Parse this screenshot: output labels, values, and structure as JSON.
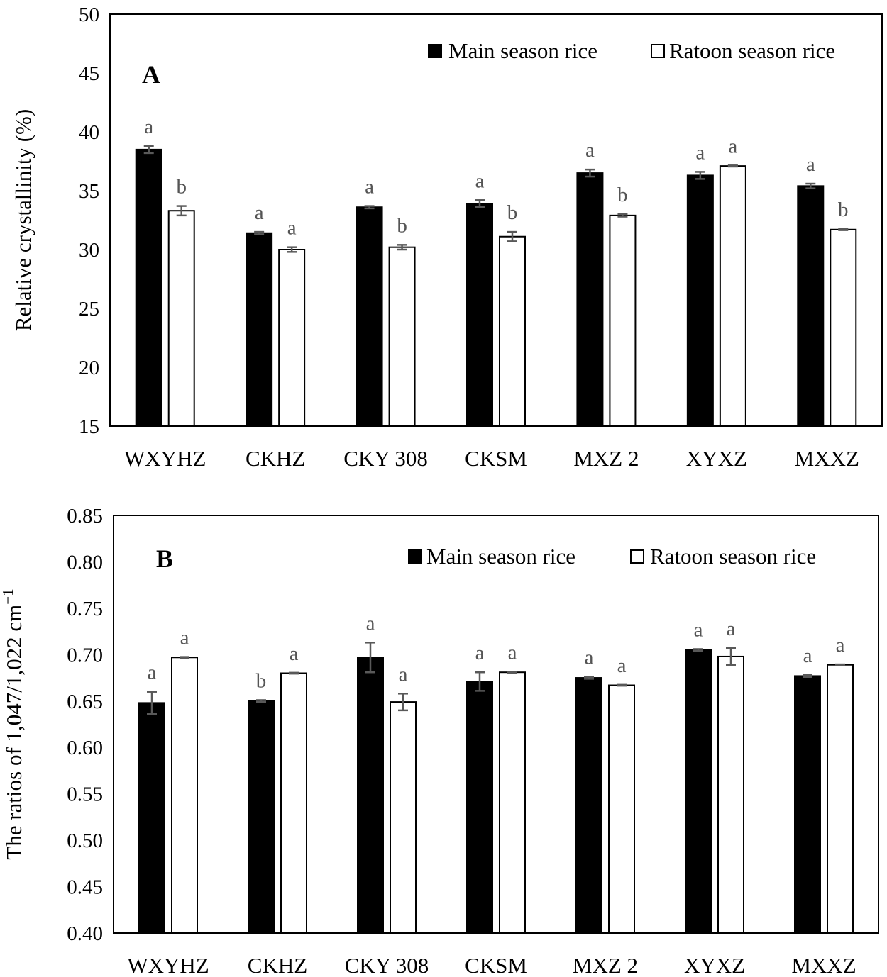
{
  "chart_data": [
    {
      "type": "bar",
      "panel": "A",
      "ylabel": "Relative crystallinity (%)",
      "xlabel": "",
      "ylim": [
        15,
        50
      ],
      "yticks": [
        "15",
        "20",
        "25",
        "30",
        "35",
        "40",
        "45",
        "50"
      ],
      "categories": [
        "WXYHZ",
        "CKHZ",
        "CKY 308",
        "CKSM",
        "MXZ 2",
        "XYXZ",
        "MXXZ"
      ],
      "series": [
        {
          "name": "Main season rice",
          "fill": "#000000",
          "values": [
            38.5,
            31.4,
            33.6,
            33.9,
            36.5,
            36.3,
            35.4
          ],
          "errors": [
            0.3,
            0.1,
            0.1,
            0.3,
            0.3,
            0.3,
            0.2
          ],
          "significance": [
            "a",
            "a",
            "a",
            "a",
            "a",
            "a",
            "a"
          ]
        },
        {
          "name": "Ratoon season rice",
          "fill": "#ffffff",
          "values": [
            33.3,
            30.0,
            30.2,
            31.1,
            32.9,
            37.1,
            31.7
          ],
          "errors": [
            0.4,
            0.2,
            0.2,
            0.4,
            0.1,
            0.05,
            0.05
          ],
          "significance": [
            "b",
            "a",
            "b",
            "b",
            "b",
            "a",
            "b"
          ]
        }
      ],
      "legend_position": "top-right",
      "grid": false
    },
    {
      "type": "bar",
      "panel": "B",
      "ylabel": "The ratios of 1,047/1,022 cm",
      "ylabel_superscript": "−1",
      "xlabel": "",
      "ylim": [
        0.4,
        0.85
      ],
      "yticks": [
        "0.40",
        "0.45",
        "0.50",
        "0.55",
        "0.60",
        "0.65",
        "0.70",
        "0.75",
        "0.80",
        "0.85"
      ],
      "categories": [
        "WXYHZ",
        "CKHZ",
        "CKY 308",
        "CKSM",
        "MXZ 2",
        "XYXZ",
        "MXXZ"
      ],
      "series": [
        {
          "name": "Main season rice",
          "fill": "#000000",
          "values": [
            0.648,
            0.65,
            0.697,
            0.671,
            0.675,
            0.705,
            0.677
          ],
          "errors": [
            0.012,
            0.001,
            0.016,
            0.01,
            0.001,
            0.001,
            0.001
          ],
          "significance": [
            "a",
            "b",
            "a",
            "a",
            "a",
            "a",
            "a"
          ]
        },
        {
          "name": "Ratoon season rice",
          "fill": "#ffffff",
          "values": [
            0.697,
            0.68,
            0.649,
            0.681,
            0.667,
            0.698,
            0.689
          ],
          "errors": [
            0.0005,
            0.0005,
            0.009,
            0.0005,
            0.0005,
            0.009,
            0.0005
          ],
          "significance": [
            "a",
            "a",
            "a",
            "a",
            "a",
            "a",
            "a"
          ]
        }
      ],
      "legend_position": "top-right",
      "grid": false
    }
  ],
  "colors": {
    "main": "#000000",
    "ratoon": "#ffffff",
    "error_bar": "#595959",
    "significance": "#555555"
  }
}
